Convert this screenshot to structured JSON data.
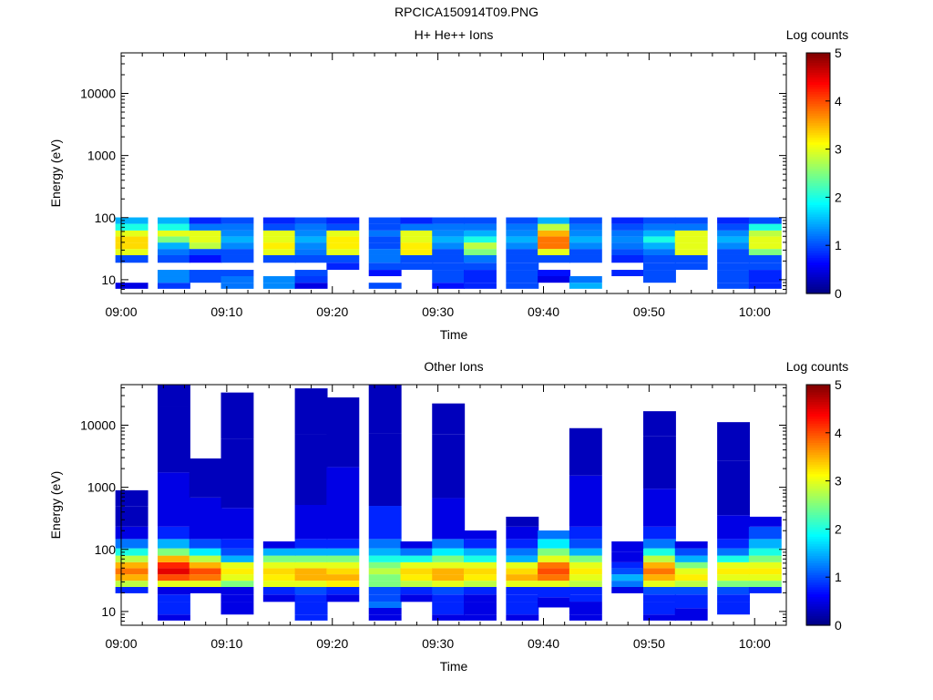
{
  "page": {
    "title": "RPCICA150914T09.PNG"
  },
  "colormap": [
    "#00007f",
    "#0000ff",
    "#007fff",
    "#00ffff",
    "#7fff7f",
    "#ffff00",
    "#ff7f00",
    "#ff0000",
    "#7f0000"
  ],
  "chart_data": [
    {
      "type": "heatmap",
      "title": "H+ He++ Ions",
      "xlabel": "Time",
      "ylabel": "Energy (eV)",
      "yscale": "log",
      "ylim": [
        6,
        45000
      ],
      "xlim": [
        "09:00",
        "10:03"
      ],
      "x_ticks": [
        "09:00",
        "09:10",
        "09:20",
        "09:30",
        "09:40",
        "09:50",
        "10:00"
      ],
      "y_ticks": [
        "10",
        "100",
        "1000",
        "10000"
      ],
      "colorbar": {
        "label": "Log counts",
        "range": [
          0,
          5
        ],
        "ticks": [
          "0",
          "1",
          "2",
          "3",
          "4",
          "5"
        ]
      },
      "columns": [
        {
          "time": "09:01",
          "values": {
            "8": 0.5,
            "10": null,
            "13": null,
            "16": null,
            "22": 1.0,
            "28": 3.0,
            "35": 3.3,
            "45": 3.3,
            "55": 3.0,
            "70": 2.0,
            "90": 1.5
          }
        },
        {
          "time": "09:05",
          "values": {
            "8": 0.9,
            "10": 1.3,
            "13": 1.3,
            "16": null,
            "22": 1.0,
            "28": 1.2,
            "35": 1.5,
            "45": 2.5,
            "55": 3.0,
            "70": 2.0,
            "90": 1.5
          }
        },
        {
          "time": "09:08",
          "values": {
            "8": null,
            "10": 1.0,
            "13": 1.0,
            "16": null,
            "22": 0.7,
            "28": 1.0,
            "35": 2.8,
            "45": 3.0,
            "55": 3.0,
            "70": 1.2,
            "90": 0.8
          }
        },
        {
          "time": "09:11",
          "values": {
            "8": 1.2,
            "10": 1.2,
            "13": 1.0,
            "16": null,
            "22": 1.0,
            "28": 1.0,
            "35": 1.3,
            "45": 1.5,
            "55": 1.3,
            "70": 1.2,
            "90": 1.0
          }
        },
        {
          "time": "09:15",
          "values": {
            "8": 1.3,
            "10": 1.3,
            "13": null,
            "16": null,
            "22": 1.0,
            "28": 3.0,
            "35": 3.2,
            "45": 3.0,
            "55": 3.0,
            "70": 1.0,
            "90": 0.8
          }
        },
        {
          "time": "09:18",
          "values": {
            "8": 0.5,
            "10": 0.9,
            "13": 1.0,
            "16": null,
            "22": 1.0,
            "28": 1.2,
            "35": 1.3,
            "45": 1.5,
            "55": 1.3,
            "70": 1.2,
            "90": 1.0
          }
        },
        {
          "time": "09:21",
          "values": {
            "8": null,
            "10": null,
            "13": null,
            "16": 0.8,
            "22": 1.0,
            "28": 3.0,
            "35": 3.2,
            "45": 3.2,
            "55": 3.0,
            "70": 1.0,
            "90": 0.8
          }
        },
        {
          "time": "09:25",
          "values": {
            "8": 1.0,
            "10": null,
            "13": 0.7,
            "16": 1.0,
            "22": 1.2,
            "28": 1.2,
            "35": 1.0,
            "45": 1.0,
            "55": 1.2,
            "70": 1.0,
            "90": 1.0
          }
        },
        {
          "time": "09:28",
          "values": {
            "8": null,
            "10": null,
            "13": null,
            "16": 1.0,
            "22": 1.0,
            "28": 3.2,
            "35": 3.2,
            "45": 3.0,
            "55": 3.0,
            "70": 1.2,
            "90": 0.8
          }
        },
        {
          "time": "09:31",
          "values": {
            "8": 0.7,
            "10": 1.0,
            "13": 1.0,
            "16": 1.0,
            "22": 1.0,
            "28": 1.0,
            "35": 1.3,
            "45": 1.5,
            "55": 1.3,
            "70": 1.2,
            "90": 1.0
          }
        },
        {
          "time": "09:34",
          "values": {
            "8": 0.8,
            "10": 0.8,
            "13": 0.8,
            "16": 1.0,
            "22": 1.2,
            "28": 2.5,
            "35": 2.8,
            "45": 2.0,
            "55": 1.5,
            "70": 1.2,
            "90": 1.0
          }
        },
        {
          "time": "09:38",
          "values": {
            "8": 1.0,
            "10": 1.0,
            "13": 1.0,
            "16": 1.0,
            "22": 1.0,
            "28": 1.0,
            "35": 1.3,
            "45": 1.5,
            "55": 1.3,
            "70": 1.2,
            "90": 1.0
          }
        },
        {
          "time": "09:41",
          "values": {
            "8": null,
            "10": 0.5,
            "13": 0.7,
            "16": null,
            "22": 1.0,
            "28": 3.0,
            "35": 3.8,
            "45": 3.8,
            "55": 3.5,
            "70": 2.8,
            "90": 1.5
          }
        },
        {
          "time": "09:44",
          "values": {
            "8": 1.5,
            "10": 1.2,
            "13": null,
            "16": null,
            "22": 1.0,
            "28": 1.0,
            "35": 1.3,
            "45": 1.5,
            "55": 1.3,
            "70": 1.2,
            "90": 1.0
          }
        },
        {
          "time": "09:48",
          "values": {
            "8": null,
            "10": null,
            "13": 0.8,
            "16": null,
            "22": 0.8,
            "28": 1.0,
            "35": 1.2,
            "45": 1.3,
            "55": 1.2,
            "70": 1.0,
            "90": 0.8
          }
        },
        {
          "time": "09:51",
          "values": {
            "8": null,
            "10": 1.0,
            "13": 1.0,
            "16": 1.0,
            "22": 1.0,
            "28": 1.2,
            "35": 1.5,
            "45": 2.0,
            "55": 1.5,
            "70": 1.2,
            "90": 1.0
          }
        },
        {
          "time": "09:54",
          "values": {
            "8": null,
            "10": null,
            "13": null,
            "16": 1.0,
            "22": 1.0,
            "28": 3.0,
            "35": 3.0,
            "45": 3.0,
            "55": 3.0,
            "70": 1.2,
            "90": 1.0
          }
        },
        {
          "time": "09:58",
          "values": {
            "8": 1.0,
            "10": 1.0,
            "13": 1.0,
            "16": 1.0,
            "22": 1.0,
            "28": 1.0,
            "35": 1.3,
            "45": 1.5,
            "55": 1.3,
            "70": 1.0,
            "90": 0.8
          }
        },
        {
          "time": "10:01",
          "values": {
            "8": 0.8,
            "10": 0.8,
            "13": 0.8,
            "16": 1.0,
            "22": 1.0,
            "28": 2.5,
            "35": 3.0,
            "45": 3.0,
            "55": 2.8,
            "70": 2.0,
            "90": 1.0
          }
        }
      ]
    },
    {
      "type": "heatmap",
      "title": "Other Ions",
      "xlabel": "Time",
      "ylabel": "Energy (eV)",
      "yscale": "log",
      "ylim": [
        6,
        45000
      ],
      "xlim": [
        "09:00",
        "10:03"
      ],
      "x_ticks": [
        "09:00",
        "09:10",
        "09:20",
        "09:30",
        "09:40",
        "09:50",
        "10:00"
      ],
      "y_ticks": [
        "10",
        "100",
        "1000",
        "10000"
      ],
      "colorbar": {
        "label": "Log counts",
        "range": [
          0,
          5
        ],
        "ticks": [
          "0",
          "1",
          "2",
          "3",
          "4",
          "5"
        ]
      },
      "columns": [
        {
          "time": "09:01",
          "values": {
            "22": 0.8,
            "28": 2.8,
            "35": 3.5,
            "45": 3.8,
            "55": 3.5,
            "70": 2.8,
            "90": 2.0,
            "120": 1.2,
            "180": 0.5,
            "300": 0.3,
            "800": 0.3
          }
        },
        {
          "time": "09:05",
          "values": {
            "8": 0.5,
            "10": 0.8,
            "13": 0.8,
            "16": 0.8,
            "22": 0.5,
            "28": 3.0,
            "35": 4.0,
            "45": 4.5,
            "55": 4.2,
            "70": 3.5,
            "90": 2.5,
            "120": 1.5,
            "180": 0.8,
            "300": 0.5,
            "10000": 0.3,
            "40000": 0.3
          }
        },
        {
          "time": "09:08",
          "values": {
            "22": 0.5,
            "28": 3.0,
            "35": 3.8,
            "45": 4.0,
            "55": 3.5,
            "70": 2.8,
            "90": 1.8,
            "120": 1.0,
            "180": 0.5,
            "2600": 0.3
          }
        },
        {
          "time": "09:11",
          "values": {
            "10": 0.5,
            "13": 0.5,
            "16": 0.5,
            "22": 0.5,
            "28": 2.5,
            "35": 3.0,
            "45": 3.2,
            "55": 3.0,
            "70": 1.5,
            "90": 1.0,
            "120": 0.8,
            "180": 0.5,
            "1200": 0.3,
            "30000": 0.3
          }
        },
        {
          "time": "09:15",
          "values": {
            "16": 0.5,
            "22": 0.8,
            "28": 3.0,
            "35": 3.2,
            "45": 3.3,
            "55": 3.0,
            "70": 2.5,
            "90": 1.5,
            "120": 0.5
          }
        },
        {
          "time": "09:18",
          "values": {
            "8": 0.8,
            "10": 0.8,
            "13": 0.8,
            "16": 0.8,
            "22": 1.0,
            "28": 3.0,
            "35": 3.5,
            "45": 3.5,
            "55": 3.0,
            "70": 2.5,
            "90": 1.5,
            "120": 0.8,
            "180": 0.5,
            "1500": 0.3,
            "35000": 0.3
          }
        },
        {
          "time": "09:21",
          "values": {
            "16": 0.5,
            "22": 0.8,
            "28": 3.2,
            "35": 3.5,
            "45": 3.3,
            "55": 3.0,
            "70": 2.5,
            "90": 1.5,
            "120": 0.8,
            "180": 0.5,
            "25000": 0.3
          }
        },
        {
          "time": "09:25",
          "values": {
            "8": 0.5,
            "10": 0.5,
            "13": 1.2,
            "16": 1.0,
            "22": 1.0,
            "28": 2.5,
            "35": 2.5,
            "45": 2.8,
            "55": 2.5,
            "70": 2.0,
            "90": 1.5,
            "120": 1.2,
            "180": 0.8,
            "1400": 0.3,
            "40000": 0.3
          }
        },
        {
          "time": "09:28",
          "values": {
            "16": 0.5,
            "22": 0.8,
            "28": 2.8,
            "35": 3.2,
            "45": 3.3,
            "55": 3.0,
            "70": 2.0,
            "90": 1.2,
            "120": 0.5
          }
        },
        {
          "time": "09:31",
          "values": {
            "8": 0.5,
            "10": 0.8,
            "13": 0.8,
            "16": 0.8,
            "22": 1.0,
            "28": 3.0,
            "35": 3.5,
            "45": 3.5,
            "55": 3.0,
            "70": 2.5,
            "90": 1.8,
            "120": 1.2,
            "180": 0.5,
            "2500": 0.3,
            "20000": 0.3
          }
        },
        {
          "time": "09:34",
          "values": {
            "8": 0.5,
            "10": 0.5,
            "13": 0.5,
            "16": 0.5,
            "22": 0.8,
            "28": 2.8,
            "35": 3.2,
            "45": 3.3,
            "55": 3.0,
            "70": 2.0,
            "90": 1.5,
            "120": 0.8,
            "180": 0.5
          }
        },
        {
          "time": "09:38",
          "values": {
            "8": 0.5,
            "10": 0.8,
            "13": 0.8,
            "16": 0.8,
            "22": 0.8,
            "28": 3.0,
            "35": 3.5,
            "45": 3.3,
            "55": 3.0,
            "70": 1.5,
            "90": 1.2,
            "120": 0.8,
            "180": 0.5,
            "300": 0.3
          }
        },
        {
          "time": "09:41",
          "values": {
            "13": 0.5,
            "22": 0.8,
            "28": 3.0,
            "35": 3.8,
            "45": 4.0,
            "55": 3.8,
            "70": 3.0,
            "90": 2.5,
            "120": 1.8,
            "180": 1.2
          }
        },
        {
          "time": "09:44",
          "values": {
            "8": 0.5,
            "10": 0.5,
            "13": 0.5,
            "16": 0.8,
            "22": 0.8,
            "28": 2.8,
            "35": 3.0,
            "45": 3.2,
            "55": 3.0,
            "70": 2.5,
            "90": 1.5,
            "120": 1.0,
            "180": 0.8,
            "300": 0.5,
            "8000": 0.3
          }
        },
        {
          "time": "09:48",
          "values": {
            "22": 0.5,
            "28": 1.2,
            "35": 1.5,
            "45": 1.0,
            "55": 0.8,
            "70": 0.5,
            "120": 0.5
          }
        },
        {
          "time": "09:51",
          "values": {
            "8": 0.5,
            "10": 0.8,
            "13": 0.8,
            "16": 0.8,
            "22": 1.0,
            "28": 3.0,
            "35": 3.5,
            "45": 3.8,
            "55": 3.5,
            "70": 2.8,
            "90": 2.0,
            "120": 1.2,
            "180": 0.8,
            "300": 0.5,
            "3000": 0.3,
            "15000": 0.3
          }
        },
        {
          "time": "09:54",
          "values": {
            "8": 0.5,
            "16": 0.8,
            "22": 1.0,
            "28": 2.8,
            "35": 3.2,
            "45": 3.0,
            "55": 2.5,
            "70": 1.5,
            "90": 1.0,
            "120": 0.5
          }
        },
        {
          "time": "09:58",
          "values": {
            "10": 0.8,
            "13": 0.8,
            "16": 0.8,
            "22": 1.0,
            "28": 2.5,
            "35": 3.0,
            "45": 3.2,
            "55": 3.0,
            "70": 2.0,
            "90": 1.2,
            "120": 0.8,
            "180": 0.5,
            "700": 0.3,
            "10000": 0.3
          }
        },
        {
          "time": "10:01",
          "values": {
            "22": 0.8,
            "28": 2.5,
            "35": 3.0,
            "45": 3.2,
            "55": 3.0,
            "70": 2.5,
            "90": 2.0,
            "120": 1.5,
            "180": 1.0,
            "300": 0.5
          }
        }
      ]
    }
  ]
}
